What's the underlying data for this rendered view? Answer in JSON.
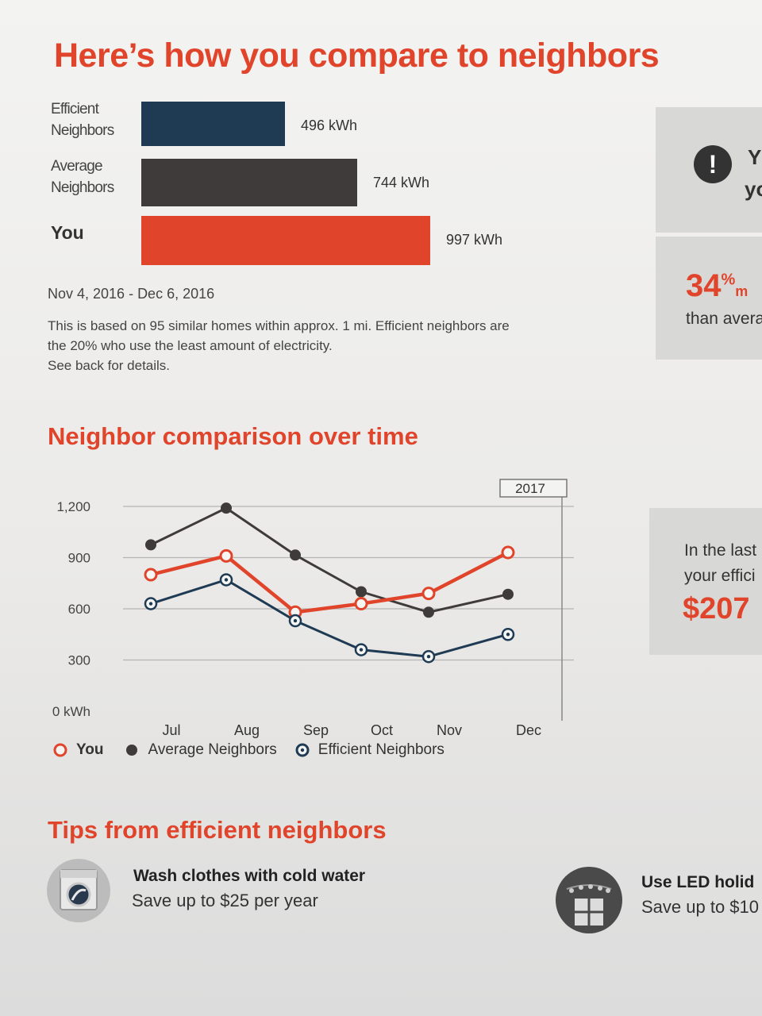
{
  "header": {
    "title": "Here’s how you compare to neighbors"
  },
  "comparison": {
    "rows": [
      {
        "label_lines": [
          "Efficient",
          "Neighbors"
        ],
        "value": 496,
        "value_label": "496 kWh",
        "color": "#1f3b54"
      },
      {
        "label_lines": [
          "Average",
          "Neighbors"
        ],
        "value": 744,
        "value_label": "744 kWh",
        "color": "#3e3b3a"
      },
      {
        "label_lines": [
          "You"
        ],
        "value": 997,
        "value_label": "997 kWh",
        "color": "#e0452b"
      }
    ],
    "date_range": "Nov 4, 2016 - Dec 6, 2016",
    "note_lines": [
      "This is based on 95 similar homes within approx. 1 mi. Efficient neighbors are",
      "the 20% who use the least amount of electricity.",
      "See back for details."
    ]
  },
  "over_time": {
    "title": "Neighbor comparison over time"
  },
  "chart_data": {
    "type": "line",
    "title": "Neighbor comparison over time",
    "x": [
      "Jul",
      "Aug",
      "Sep",
      "Oct",
      "Nov",
      "Dec"
    ],
    "y_ticks": [
      "1,200",
      "900",
      "600",
      "300",
      "0 kWh"
    ],
    "y_tick_values": [
      1200,
      900,
      600,
      300,
      0
    ],
    "ylim": [
      0,
      1200
    ],
    "year_tag": "2017",
    "series": [
      {
        "name": "Average Neighbors",
        "values": [
          975,
          1190,
          915,
          700,
          580,
          685
        ],
        "color": "#3e3b3a",
        "marker": "filled"
      },
      {
        "name": "You",
        "values": [
          800,
          910,
          580,
          630,
          690,
          930
        ],
        "color": "#e0452b",
        "marker": "hollow"
      },
      {
        "name": "Efficient Neighbors",
        "values": [
          630,
          770,
          530,
          360,
          320,
          450
        ],
        "color": "#1f3b54",
        "marker": "dot"
      }
    ],
    "legend": [
      {
        "name": "You",
        "marker": "hollow",
        "color": "#e0452b"
      },
      {
        "name": "Average Neighbors",
        "marker": "filled",
        "color": "#3e3b3a"
      },
      {
        "name": "Efficient Neighbors",
        "marker": "dot",
        "color": "#1f3b54"
      }
    ],
    "legend_position": "bottom"
  },
  "tips": {
    "title": "Tips from efficient neighbors",
    "items": [
      {
        "title": "Wash clothes with cold water",
        "subtitle": "Save up to $25 per year",
        "icon": "washing-machine-icon"
      },
      {
        "title": "Use LED holid",
        "subtitle": "Save up to $10",
        "icon": "holiday-window-icon"
      }
    ]
  },
  "side_panels": {
    "alert": {
      "line1": "Y",
      "line2": "yo",
      "icon": "exclamation-icon"
    },
    "percent": {
      "value": "34",
      "unit": "%",
      "trail": "m",
      "text": "than avera"
    },
    "savings": {
      "line1": "In the last",
      "line2": "your effici",
      "amount": "$207"
    }
  }
}
